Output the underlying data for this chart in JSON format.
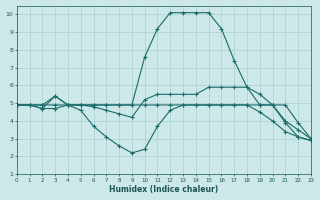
{
  "xlabel": "Humidex (Indice chaleur)",
  "xlim": [
    0,
    23
  ],
  "ylim": [
    1,
    10.5
  ],
  "xticks": [
    0,
    1,
    2,
    3,
    4,
    5,
    6,
    7,
    8,
    9,
    10,
    11,
    12,
    13,
    14,
    15,
    16,
    17,
    18,
    19,
    20,
    21,
    22,
    23
  ],
  "yticks": [
    1,
    2,
    3,
    4,
    5,
    6,
    7,
    8,
    9,
    10
  ],
  "bg_color": "#cce8e8",
  "grid_color": "#aacfcf",
  "line_color": "#1a6b6b",
  "line1_x": [
    0,
    1,
    2,
    3,
    4,
    5,
    6,
    7,
    8,
    9,
    10,
    11,
    12,
    13,
    14,
    15,
    16,
    17,
    18,
    19,
    20,
    21,
    22,
    23
  ],
  "line1_y": [
    4.9,
    4.9,
    4.9,
    4.9,
    4.9,
    4.9,
    4.9,
    4.9,
    4.9,
    4.9,
    4.9,
    4.9,
    4.9,
    4.9,
    4.9,
    4.9,
    4.9,
    4.9,
    4.9,
    4.9,
    4.9,
    4.9,
    3.9,
    3.0
  ],
  "line2_x": [
    0,
    1,
    2,
    3,
    4,
    5,
    6,
    7,
    8,
    9,
    10,
    11,
    12,
    13,
    14,
    15,
    16,
    17,
    18,
    19,
    20,
    21,
    22,
    23
  ],
  "line2_y": [
    4.9,
    4.9,
    4.7,
    5.4,
    4.9,
    4.6,
    3.7,
    3.1,
    2.6,
    2.2,
    2.4,
    3.7,
    4.6,
    4.9,
    4.9,
    4.9,
    4.9,
    4.9,
    4.9,
    4.5,
    4.0,
    3.4,
    3.1,
    2.9
  ],
  "line3_x": [
    0,
    2,
    3,
    4,
    5,
    6,
    7,
    8,
    9,
    10,
    11,
    12,
    13,
    14,
    15,
    16,
    17,
    18,
    19,
    20,
    21,
    22,
    23
  ],
  "line3_y": [
    4.9,
    4.9,
    5.4,
    4.9,
    4.9,
    4.8,
    4.6,
    4.4,
    4.2,
    5.2,
    5.5,
    5.5,
    5.5,
    5.5,
    5.9,
    5.9,
    5.9,
    5.9,
    5.5,
    4.9,
    4.0,
    3.5,
    3.0
  ],
  "line4_x": [
    0,
    1,
    2,
    3,
    4,
    5,
    6,
    7,
    8,
    9,
    10,
    11,
    12,
    13,
    14,
    15,
    16,
    17,
    18,
    19,
    20,
    21,
    22,
    23
  ],
  "line4_y": [
    4.9,
    4.9,
    4.7,
    4.7,
    4.9,
    4.9,
    4.9,
    4.9,
    4.9,
    4.9,
    7.6,
    9.2,
    10.1,
    10.1,
    10.1,
    10.1,
    9.2,
    7.4,
    5.9,
    4.9,
    4.9,
    3.9,
    3.1,
    2.9
  ]
}
